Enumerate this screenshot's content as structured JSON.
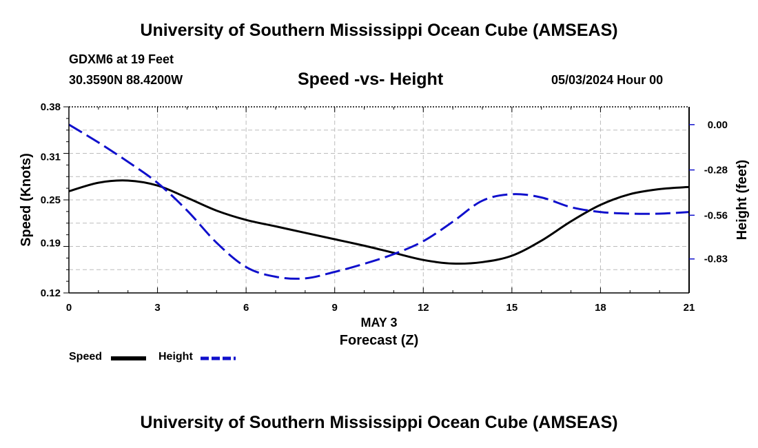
{
  "header": {
    "title": "University of Southern Mississippi Ocean Cube (AMSEAS)",
    "station": "GDXM6 at 19 Feet",
    "coords": "30.3590N  88.4200W",
    "subtitle": "Speed -vs- Height",
    "datetime": "05/03/2024 Hour 00"
  },
  "footer": {
    "title": "University of Southern Mississippi Ocean Cube (AMSEAS)"
  },
  "legend": {
    "speed_label": "Speed",
    "height_label": "Height"
  },
  "chart_data": {
    "type": "line",
    "xlabel": "Forecast (Z)",
    "xdate_label": "MAY 3",
    "ylabel": "Speed (Knots)",
    "y2label": "Height (feet)",
    "xlim": [
      0,
      21
    ],
    "ylim": [
      0.12,
      0.38
    ],
    "y2lim": [
      -1.04,
      0.11
    ],
    "xticks": [
      0,
      3,
      6,
      9,
      12,
      15,
      18,
      21
    ],
    "yticks": [
      "0.38",
      "0.31",
      "0.25",
      "0.19",
      "0.12"
    ],
    "yticks_values": [
      0.38,
      0.31,
      0.25,
      0.19,
      0.12
    ],
    "y2ticks": [
      "0.00",
      "-0.28",
      "-0.56",
      "-0.83"
    ],
    "y2ticks_values": [
      0.0,
      -0.28,
      -0.56,
      -0.83
    ],
    "grid": true,
    "series": [
      {
        "name": "Speed",
        "axis": "left",
        "color": "#000000",
        "dash": "solid",
        "x": [
          0,
          1,
          2,
          3,
          4,
          5,
          6,
          7,
          8,
          9,
          10,
          11,
          12,
          13,
          14,
          15,
          16,
          17,
          18,
          19,
          20,
          21
        ],
        "y": [
          0.262,
          0.274,
          0.277,
          0.27,
          0.253,
          0.235,
          0.222,
          0.213,
          0.204,
          0.195,
          0.186,
          0.176,
          0.166,
          0.161,
          0.163,
          0.172,
          0.193,
          0.22,
          0.243,
          0.258,
          0.265,
          0.268
        ]
      },
      {
        "name": "Height",
        "axis": "right",
        "color": "#1010cc",
        "dash": "dashed",
        "x": [
          0,
          1,
          2,
          3,
          4,
          5,
          6,
          7,
          8,
          9,
          10,
          11,
          12,
          13,
          14,
          15,
          16,
          17,
          18,
          19,
          20,
          21
        ],
        "y": [
          0.0,
          -0.11,
          -0.23,
          -0.36,
          -0.53,
          -0.73,
          -0.88,
          -0.94,
          -0.95,
          -0.91,
          -0.86,
          -0.8,
          -0.72,
          -0.6,
          -0.47,
          -0.43,
          -0.45,
          -0.51,
          -0.54,
          -0.55,
          -0.55,
          -0.54
        ]
      }
    ]
  }
}
